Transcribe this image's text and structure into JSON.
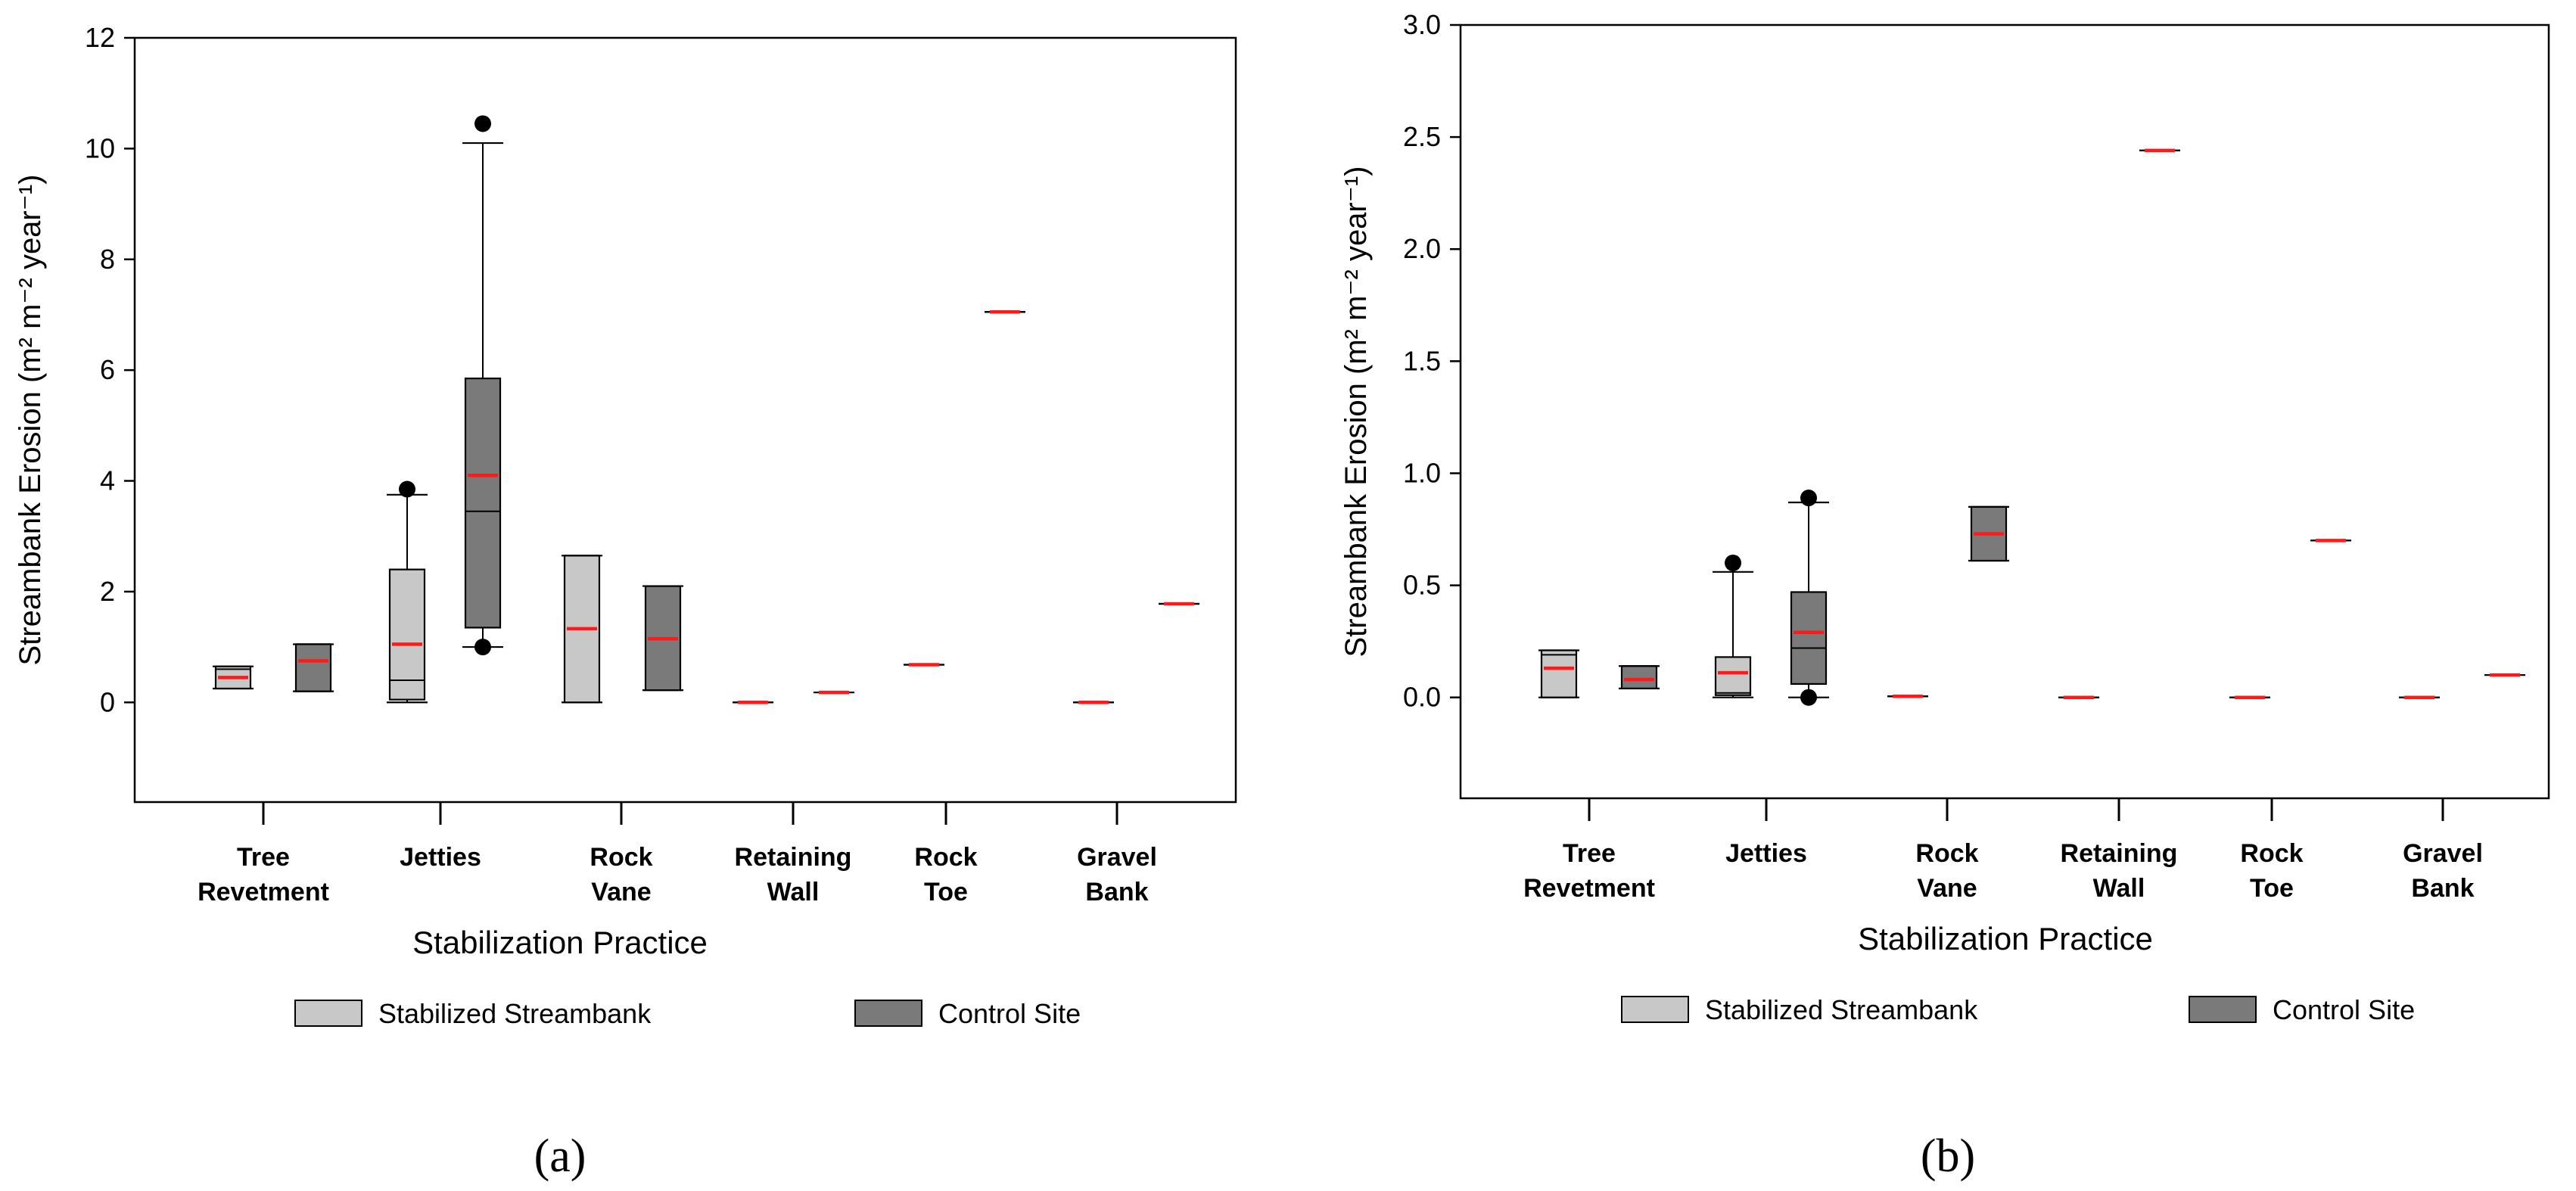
{
  "legend_labels": {
    "stabilized": "Stabilized Streambank",
    "control": "Control Site"
  },
  "colors": {
    "stabilized": "#c8c8c8",
    "control": "#7a7a7a",
    "mean_line": "#ff1a1a",
    "median_line": "#000000"
  },
  "chart_data": [
    {
      "panel_label": "(a)",
      "type": "boxplot",
      "title": "",
      "xlabel": "Stabilization Practice",
      "ylabel": "Streambank Erosion (m² m⁻² year⁻¹)",
      "ylim": [
        -1.8,
        12
      ],
      "yticks": [
        "0",
        "2",
        "4",
        "6",
        "8",
        "10",
        "12"
      ],
      "yticks_values": [
        0,
        2,
        4,
        6,
        8,
        10,
        12
      ],
      "categories": [
        [
          "Tree",
          "Revetment"
        ],
        [
          "Jetties"
        ],
        [
          "Rock",
          "Vane"
        ],
        [
          "Retaining",
          "Wall"
        ],
        [
          "Rock",
          "Toe"
        ],
        [
          "Gravel",
          "Bank"
        ]
      ],
      "series": [
        {
          "name": "Stabilized Streambank",
          "boxes": [
            {
              "whisker_low": 0.25,
              "q1": 0.25,
              "median": 0.6,
              "q3": 0.65,
              "whisker_high": 0.65,
              "mean": 0.45,
              "outliers": []
            },
            {
              "whisker_low": 0.0,
              "q1": 0.05,
              "median": 0.4,
              "q3": 2.4,
              "whisker_high": 3.75,
              "mean": 1.05,
              "outliers": [
                3.85
              ]
            },
            {
              "whisker_low": 0.0,
              "q1": 0.0,
              "median": 2.65,
              "q3": 2.65,
              "whisker_high": 2.65,
              "mean": 1.33,
              "outliers": []
            },
            {
              "whisker_low": 0.0,
              "q1": 0.0,
              "median": 0.0,
              "q3": 0.0,
              "whisker_high": 0.0,
              "mean": 0.0,
              "outliers": []
            },
            {
              "whisker_low": 0.68,
              "q1": 0.68,
              "median": 0.68,
              "q3": 0.68,
              "whisker_high": 0.68,
              "mean": 0.68,
              "outliers": []
            },
            {
              "whisker_low": 0.0,
              "q1": 0.0,
              "median": 0.0,
              "q3": 0.0,
              "whisker_high": 0.0,
              "mean": 0.0,
              "outliers": []
            }
          ]
        },
        {
          "name": "Control Site",
          "boxes": [
            {
              "whisker_low": 0.2,
              "q1": 0.2,
              "median": 1.05,
              "q3": 1.05,
              "whisker_high": 1.05,
              "mean": 0.75,
              "outliers": []
            },
            {
              "whisker_low": 1.0,
              "q1": 1.35,
              "median": 3.45,
              "q3": 5.85,
              "whisker_high": 10.1,
              "mean": 4.1,
              "outliers": [
                10.45,
                1.0
              ]
            },
            {
              "whisker_low": 0.22,
              "q1": 0.22,
              "median": 2.1,
              "q3": 2.1,
              "whisker_high": 2.1,
              "mean": 1.15,
              "outliers": []
            },
            {
              "whisker_low": 0.18,
              "q1": 0.18,
              "median": 0.18,
              "q3": 0.18,
              "whisker_high": 0.18,
              "mean": 0.18,
              "outliers": []
            },
            {
              "whisker_low": 7.05,
              "q1": 7.05,
              "median": 7.05,
              "q3": 7.05,
              "whisker_high": 7.05,
              "mean": 7.05,
              "outliers": []
            },
            {
              "whisker_low": 1.78,
              "q1": 1.78,
              "median": 1.78,
              "q3": 1.78,
              "whisker_high": 1.78,
              "mean": 1.78,
              "outliers": []
            }
          ]
        }
      ]
    },
    {
      "panel_label": "(b)",
      "type": "boxplot",
      "title": "",
      "xlabel": "Stabilization Practice",
      "ylabel": "Streambank Erosion (m² m⁻² year⁻¹)",
      "ylim": [
        -0.45,
        3.0
      ],
      "yticks": [
        "0.0",
        "0.5",
        "1.0",
        "1.5",
        "2.0",
        "2.5",
        "3.0"
      ],
      "yticks_values": [
        0,
        0.5,
        1.0,
        1.5,
        2.0,
        2.5,
        3.0
      ],
      "categories": [
        [
          "Tree",
          "Revetment"
        ],
        [
          "Jetties"
        ],
        [
          "Rock",
          "Vane"
        ],
        [
          "Retaining",
          "Wall"
        ],
        [
          "Rock",
          "Toe"
        ],
        [
          "Gravel",
          "Bank"
        ]
      ],
      "series": [
        {
          "name": "Stabilized Streambank",
          "boxes": [
            {
              "whisker_low": 0.0,
              "q1": 0.0,
              "median": 0.19,
              "q3": 0.21,
              "whisker_high": 0.21,
              "mean": 0.13,
              "outliers": []
            },
            {
              "whisker_low": 0.0,
              "q1": 0.01,
              "median": 0.02,
              "q3": 0.18,
              "whisker_high": 0.56,
              "mean": 0.11,
              "outliers": [
                0.6
              ]
            },
            {
              "whisker_low": 0.005,
              "q1": 0.005,
              "median": 0.005,
              "q3": 0.005,
              "whisker_high": 0.005,
              "mean": 0.005,
              "outliers": []
            },
            {
              "whisker_low": 0.0,
              "q1": 0.0,
              "median": 0.0,
              "q3": 0.0,
              "whisker_high": 0.0,
              "mean": 0.0,
              "outliers": []
            },
            {
              "whisker_low": 0.0,
              "q1": 0.0,
              "median": 0.0,
              "q3": 0.0,
              "whisker_high": 0.0,
              "mean": 0.0,
              "outliers": []
            },
            {
              "whisker_low": 0.0,
              "q1": 0.0,
              "median": 0.0,
              "q3": 0.0,
              "whisker_high": 0.0,
              "mean": 0.0,
              "outliers": []
            }
          ]
        },
        {
          "name": "Control Site",
          "boxes": [
            {
              "whisker_low": 0.04,
              "q1": 0.04,
              "median": 0.14,
              "q3": 0.14,
              "whisker_high": 0.14,
              "mean": 0.08,
              "outliers": []
            },
            {
              "whisker_low": 0.0,
              "q1": 0.06,
              "median": 0.22,
              "q3": 0.47,
              "whisker_high": 0.87,
              "mean": 0.29,
              "outliers": [
                0.89,
                0.0
              ]
            },
            {
              "whisker_low": 0.61,
              "q1": 0.61,
              "median": 0.85,
              "q3": 0.85,
              "whisker_high": 0.85,
              "mean": 0.73,
              "outliers": []
            },
            {
              "whisker_low": 2.44,
              "q1": 2.44,
              "median": 2.44,
              "q3": 2.44,
              "whisker_high": 2.44,
              "mean": 2.44,
              "outliers": []
            },
            {
              "whisker_low": 0.7,
              "q1": 0.7,
              "median": 0.7,
              "q3": 0.7,
              "whisker_high": 0.7,
              "mean": 0.7,
              "outliers": []
            },
            {
              "whisker_low": 0.1,
              "q1": 0.1,
              "median": 0.1,
              "q3": 0.1,
              "whisker_high": 0.1,
              "mean": 0.1,
              "outliers": []
            }
          ]
        }
      ]
    }
  ]
}
